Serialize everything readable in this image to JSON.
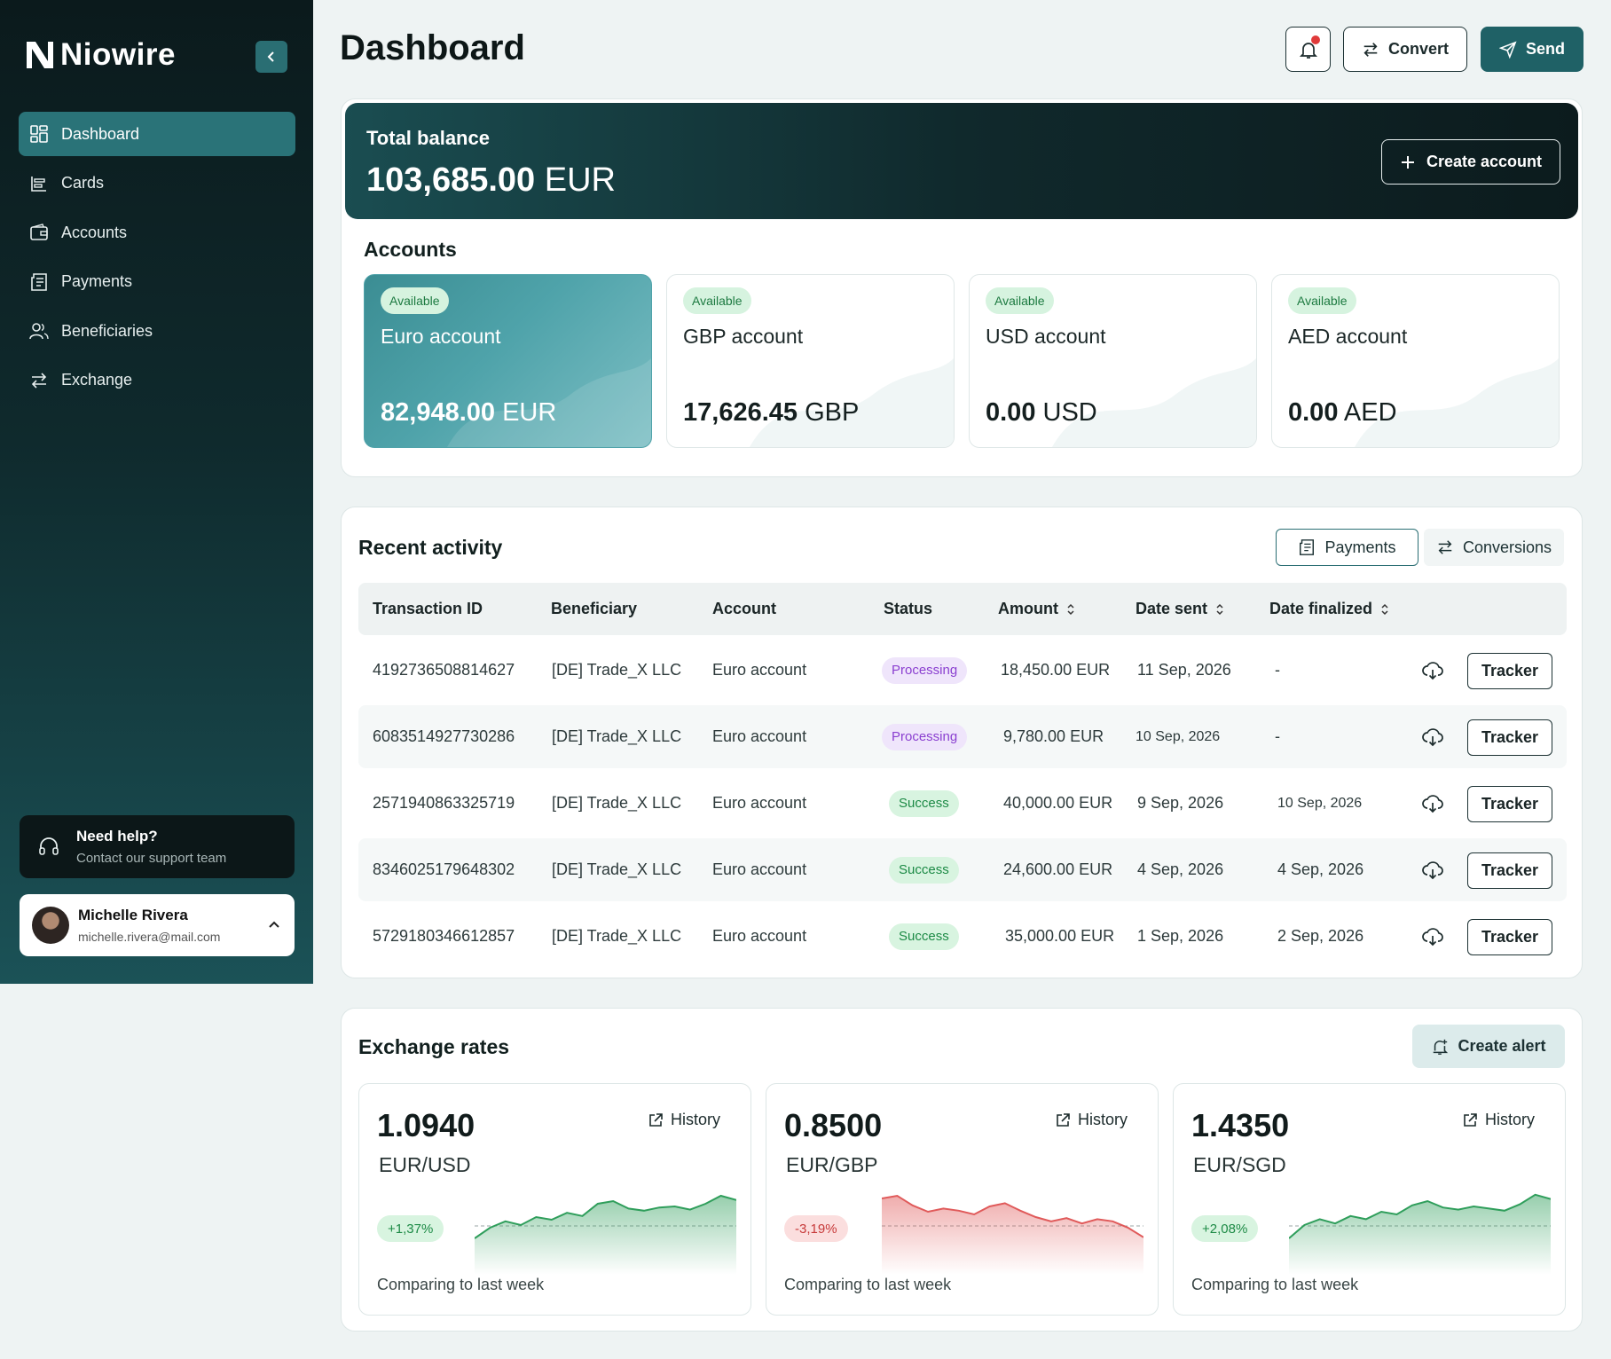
{
  "app": {
    "name": "Niowire"
  },
  "sidebar": {
    "items": [
      {
        "label": "Dashboard",
        "icon": "dashboard-icon",
        "active": true
      },
      {
        "label": "Cards",
        "icon": "cards-icon"
      },
      {
        "label": "Accounts",
        "icon": "wallet-icon"
      },
      {
        "label": "Payments",
        "icon": "receipt-icon"
      },
      {
        "label": "Beneficiaries",
        "icon": "users-icon"
      },
      {
        "label": "Exchange",
        "icon": "exchange-icon"
      }
    ],
    "help": {
      "title": "Need help?",
      "subtitle": "Contact our support team"
    },
    "user": {
      "name": "Michelle Rivera",
      "email": "michelle.rivera@mail.com"
    }
  },
  "header": {
    "title": "Dashboard",
    "convert_label": "Convert",
    "send_label": "Send",
    "has_notification": true
  },
  "balance": {
    "label": "Total balance",
    "amount": "103,685.00",
    "currency": "EUR",
    "create_account_label": "Create account"
  },
  "accounts": {
    "title": "Accounts",
    "items": [
      {
        "badge": "Available",
        "name": "Euro account",
        "amount": "82,948.00",
        "currency": "EUR"
      },
      {
        "badge": "Available",
        "name": "GBP account",
        "amount": "17,626.45",
        "currency": "GBP"
      },
      {
        "badge": "Available",
        "name": "USD account",
        "amount": "0.00",
        "currency": "USD"
      },
      {
        "badge": "Available",
        "name": "AED account",
        "amount": "0.00",
        "currency": "AED"
      }
    ]
  },
  "activity": {
    "title": "Recent activity",
    "tabs": {
      "payments": "Payments",
      "conversions": "Conversions"
    },
    "columns": [
      "Transaction ID",
      "Beneficiary",
      "Account",
      "Status",
      "Amount",
      "Date sent",
      "Date finalized"
    ],
    "tracker_label": "Tracker",
    "rows": [
      {
        "id": "4192736508814627",
        "beneficiary": "[DE] Trade_X LLC",
        "account": "Euro account",
        "status": "Processing",
        "amount": "18,450.00 EUR",
        "date_sent": "11 Sep, 2026",
        "date_finalized": "-"
      },
      {
        "id": "6083514927730286",
        "beneficiary": "[DE] Trade_X LLC",
        "account": "Euro account",
        "status": "Processing",
        "amount": "9,780.00 EUR",
        "date_sent": "10 Sep, 2026",
        "date_finalized": "-"
      },
      {
        "id": "2571940863325719",
        "beneficiary": "[DE] Trade_X LLC",
        "account": "Euro account",
        "status": "Success",
        "amount": "40,000.00 EUR",
        "date_sent": "9 Sep, 2026",
        "date_finalized": "10 Sep, 2026"
      },
      {
        "id": "8346025179648302",
        "beneficiary": "[DE] Trade_X LLC",
        "account": "Euro account",
        "status": "Success",
        "amount": "24,600.00 EUR",
        "date_sent": "4 Sep, 2026",
        "date_finalized": "4 Sep, 2026"
      },
      {
        "id": "5729180346612857",
        "beneficiary": "[DE] Trade_X LLC",
        "account": "Euro account",
        "status": "Success",
        "amount": "35,000.00 EUR",
        "date_sent": "1 Sep, 2026",
        "date_finalized": "2 Sep, 2026"
      }
    ]
  },
  "exchange": {
    "title": "Exchange rates",
    "create_alert_label": "Create alert",
    "history_label": "History",
    "compare_label": "Comparing to last week",
    "colors": {
      "up": "#2f9e5b",
      "down": "#e05a5a"
    },
    "rates": [
      {
        "value": "1.0940",
        "pair": "EUR/USD",
        "change": "+1,37%",
        "direction": "up",
        "trend": [
          0.1,
          0.3,
          0.42,
          0.35,
          0.5,
          0.45,
          0.58,
          0.52,
          0.75,
          0.8,
          0.66,
          0.62,
          0.68,
          0.7,
          0.64,
          0.75,
          0.9,
          0.82
        ]
      },
      {
        "value": "0.8500",
        "pair": "EUR/GBP",
        "change": "-3,19%",
        "direction": "down",
        "trend": [
          0.85,
          0.9,
          0.72,
          0.6,
          0.66,
          0.62,
          0.55,
          0.7,
          0.76,
          0.62,
          0.5,
          0.42,
          0.48,
          0.38,
          0.46,
          0.42,
          0.3,
          0.12
        ]
      },
      {
        "value": "1.4350",
        "pair": "EUR/SGD",
        "change": "+2,08%",
        "direction": "up",
        "trend": [
          0.1,
          0.35,
          0.46,
          0.38,
          0.52,
          0.46,
          0.6,
          0.55,
          0.72,
          0.8,
          0.68,
          0.64,
          0.7,
          0.66,
          0.62,
          0.74,
          0.92,
          0.84
        ]
      }
    ]
  }
}
